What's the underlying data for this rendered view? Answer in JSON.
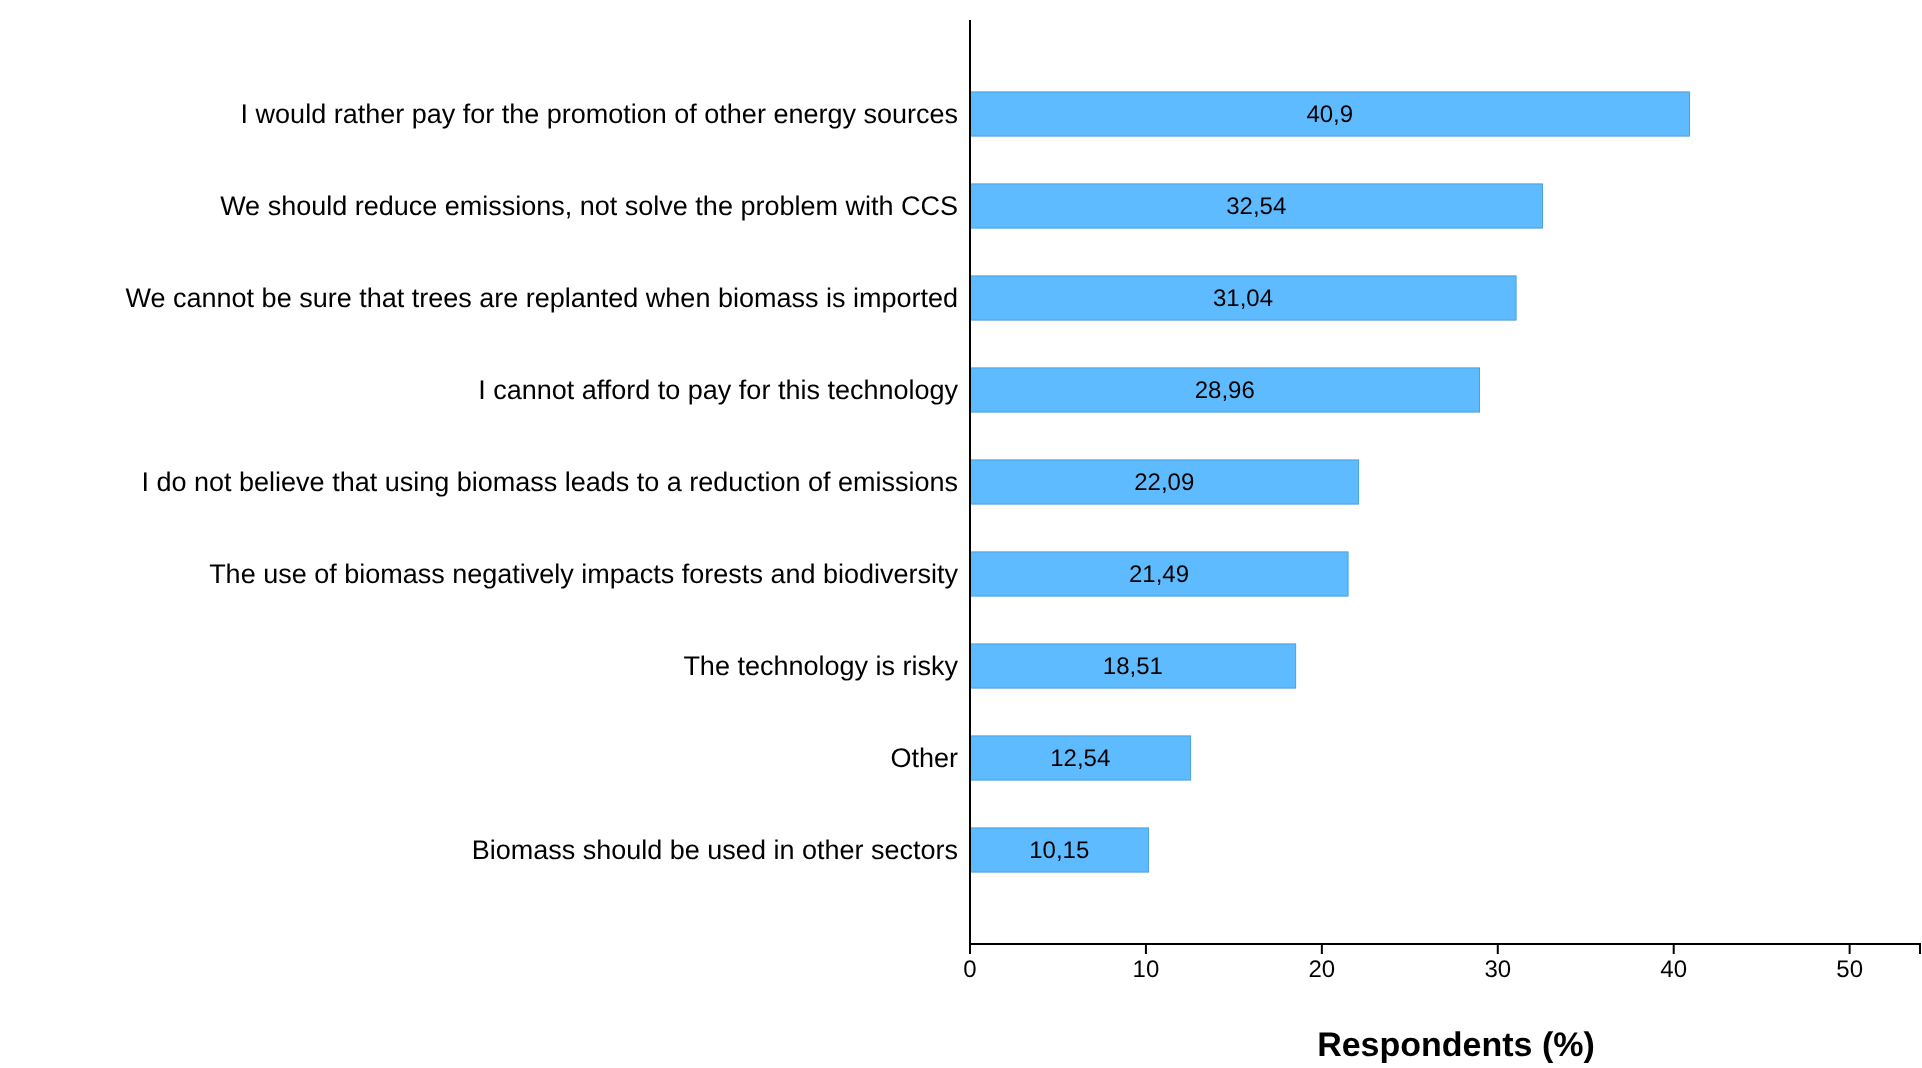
{
  "chart_data": {
    "type": "bar",
    "orientation": "horizontal",
    "xlabel": "Respondents (%)",
    "categories": [
      "I would rather pay for the promotion of other energy sources",
      "We should reduce emissions, not solve the problem with CCS",
      "We cannot be sure that trees are replanted when biomass is imported",
      "I cannot afford to pay for this technology",
      "I do not believe that using biomass leads to a reduction of emissions",
      "The use of biomass negatively impacts forests and biodiversity",
      "The technology is risky",
      "Other",
      "Biomass should be used in other sectors"
    ],
    "values": [
      40.9,
      32.54,
      31.04,
      28.96,
      22.09,
      21.49,
      18.51,
      12.54,
      10.15
    ],
    "value_labels": [
      "40,9",
      "32,54",
      "31,04",
      "28,96",
      "22,09",
      "21,49",
      "18,51",
      "12,54",
      "10,15"
    ],
    "color": "#5fbbff",
    "xlim": [
      0,
      54
    ],
    "xticks": [
      0,
      10,
      20,
      30,
      40,
      50
    ],
    "grid": false
  }
}
